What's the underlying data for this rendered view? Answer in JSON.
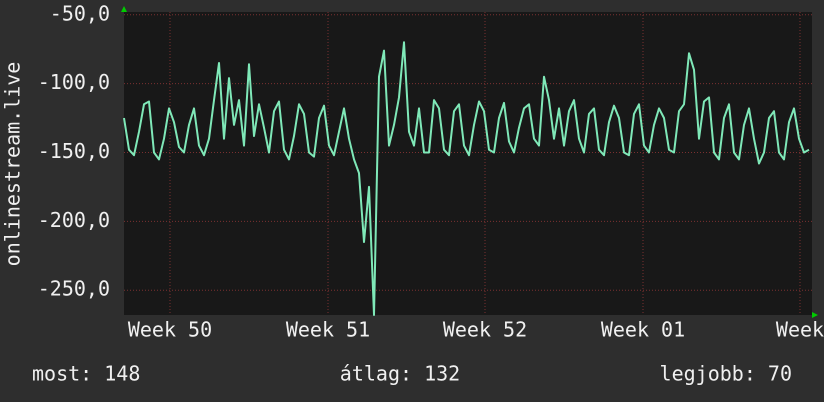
{
  "chart_data": {
    "type": "line",
    "ylabel": "onlinestream.live",
    "series": [
      {
        "name": null,
        "color": "#7fe8b8",
        "values": [
          -125,
          -148,
          -152,
          -135,
          -115,
          -113,
          -150,
          -155,
          -140,
          -118,
          -128,
          -146,
          -150,
          -130,
          -118,
          -145,
          -152,
          -140,
          -112,
          -85,
          -140,
          -96,
          -130,
          -112,
          -145,
          -86,
          -138,
          -115,
          -132,
          -150,
          -120,
          -113,
          -148,
          -155,
          -138,
          -115,
          -122,
          -150,
          -153,
          -125,
          -116,
          -145,
          -152,
          -135,
          -118,
          -140,
          -155,
          -165,
          -215,
          -175,
          -268,
          -95,
          -76,
          -145,
          -130,
          -110,
          -70,
          -135,
          -145,
          -118,
          -150,
          -150,
          -112,
          -118,
          -148,
          -152,
          -120,
          -115,
          -145,
          -152,
          -130,
          -113,
          -120,
          -148,
          -150,
          -125,
          -114,
          -142,
          -150,
          -132,
          -118,
          -115,
          -140,
          -145,
          -95,
          -112,
          -140,
          -118,
          -145,
          -120,
          -112,
          -140,
          -150,
          -122,
          -118,
          -148,
          -152,
          -128,
          -116,
          -125,
          -150,
          -152,
          -122,
          -115,
          -145,
          -150,
          -130,
          -118,
          -125,
          -148,
          -150,
          -120,
          -115,
          -78,
          -90,
          -140,
          -113,
          -110,
          -150,
          -155,
          -125,
          -115,
          -150,
          -155,
          -130,
          -118,
          -140,
          -158,
          -150,
          -125,
          -120,
          -150,
          -155,
          -128,
          -118,
          -140,
          -150,
          -148
        ]
      }
    ],
    "xlim": [
      0,
      137.6
    ],
    "xticks": [
      {
        "value": 9.2,
        "label": "Week 50"
      },
      {
        "value": 40.8,
        "label": "Week 51"
      },
      {
        "value": 72.2,
        "label": "Week 52"
      },
      {
        "value": 103.8,
        "label": "Week 01"
      },
      {
        "value": 135.2,
        "label": "Week"
      }
    ],
    "ylim": [
      -268,
      -48
    ],
    "yticks": [
      {
        "value": -50,
        "label": "-50,0"
      },
      {
        "value": -100,
        "label": "-100,0"
      },
      {
        "value": -150,
        "label": "-150,0"
      },
      {
        "value": -200,
        "label": "-200,0"
      },
      {
        "value": -250,
        "label": "-250,0"
      }
    ],
    "grid": true,
    "footer": [
      "most: 148",
      "átlag: 132",
      "legjobb: 70"
    ]
  }
}
